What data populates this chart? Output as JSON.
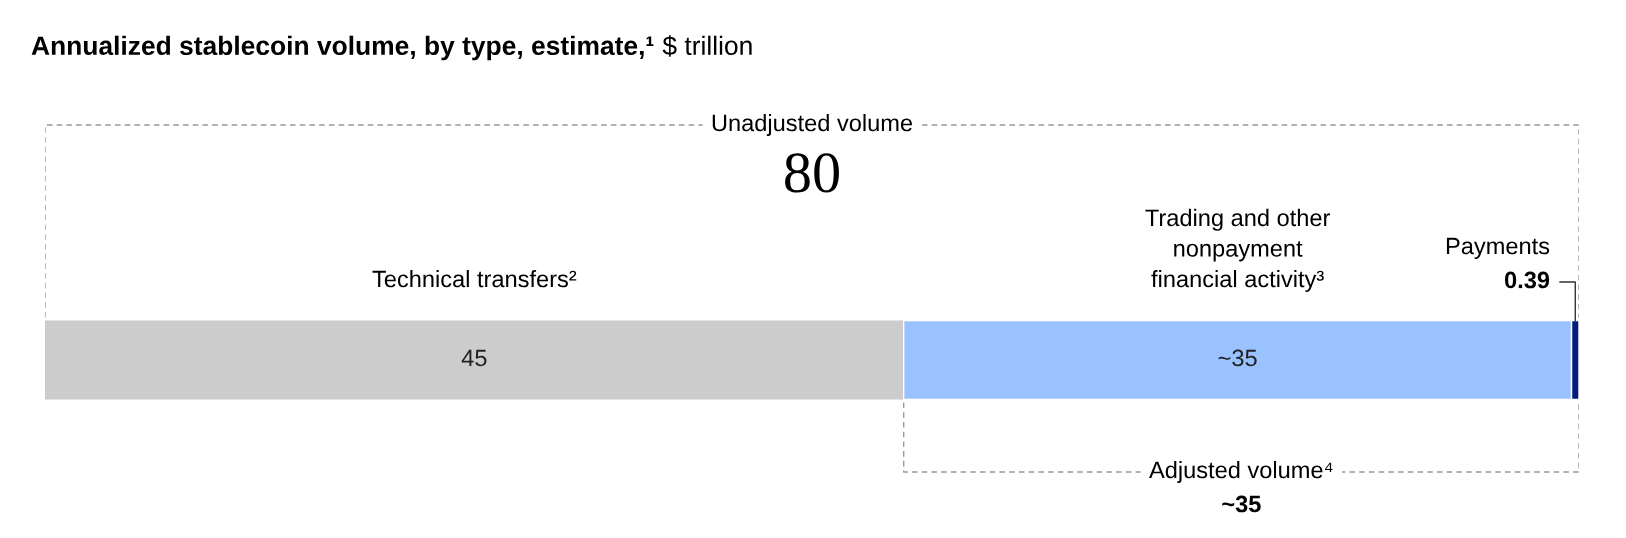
{
  "chart_data": {
    "type": "bar",
    "orientation": "horizontal",
    "stacked": true,
    "title": "Annualized stablecoin volume, by type, estimate,¹",
    "subtitle": "$ trillion",
    "categories": [
      null
    ],
    "legend": false,
    "series": [
      {
        "name": "Technical transfers²",
        "color": "#cccccc",
        "values": [
          45
        ],
        "value_labels": [
          "45"
        ]
      },
      {
        "name": "Trading and other\nnonpayment\nfinancial activity³",
        "color": "#99c2ff",
        "values": [
          35
        ],
        "value_labels": [
          "~35"
        ]
      },
      {
        "name": "Payments",
        "color": "#051c7a",
        "values": [
          0.39
        ],
        "value_labels": [
          "0.39"
        ]
      }
    ],
    "annotations": [
      "Unadjusted volume",
      "80",
      "Adjusted volume⁴",
      "~35"
    ]
  }
}
